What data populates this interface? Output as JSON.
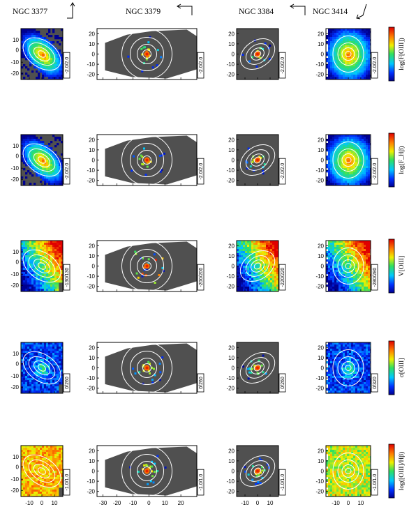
{
  "figure": {
    "galaxies": [
      {
        "name": "NGC 3377",
        "arrow": "north-east"
      },
      {
        "name": "NGC 3379",
        "arrow": "north-west"
      },
      {
        "name": "NGC 3384",
        "arrow": "north-west"
      },
      {
        "name": "NGC 3414",
        "arrow": "south-west"
      }
    ],
    "rows": [
      {
        "quantity": "log(F[OIII])",
        "ranges": [
          "-2.0/2.0",
          "-2.0/2.0",
          "-2.0/2.0",
          "-2.0/2.0"
        ],
        "colormap": "rainbow"
      },
      {
        "quantity": "log(F_Hβ)",
        "ranges": [
          "-2.0/2.0",
          "-2.0/2.0",
          "-2.0/2.0",
          "-2.0/2.0"
        ],
        "colormap": "rainbow"
      },
      {
        "quantity": "V[OIII]",
        "ranges": [
          "-130/130",
          "-200/200",
          "-220/220",
          "-280/280"
        ],
        "colormap": "rainbow"
      },
      {
        "quantity": "σ[OIII]",
        "ranges": [
          "0/260",
          "0/260",
          "0/260",
          "0/320"
        ],
        "colormap": "rainbow"
      },
      {
        "quantity": "log([OIII]/Hβ)",
        "ranges": [
          "-1.0/1.0",
          "-1.0/1.0",
          "-1.0/1.0",
          "-1.0/1.0"
        ],
        "colormap": "rainbow"
      }
    ],
    "axes": {
      "ngc3377": {
        "yticks": [
          "10",
          "0",
          "-10",
          "-20"
        ],
        "xticks": [
          "-10",
          "0",
          "10"
        ]
      },
      "ngc3379": {
        "yticks": [
          "20",
          "10",
          "0",
          "-10",
          "-20"
        ],
        "xticks": [
          "-30",
          "-20",
          "-10",
          "0",
          "10",
          "20"
        ]
      },
      "ngc3384": {
        "yticks": [
          "20",
          "10",
          "0",
          "-10",
          "-20"
        ],
        "xticks": [
          "-10",
          "0",
          "10"
        ]
      },
      "ngc3414": {
        "yticks": [
          "20",
          "10",
          "0",
          "-10",
          "-20"
        ],
        "xticks": [
          "-10",
          "0",
          "10"
        ]
      }
    },
    "colors": {
      "no_data": "#505050",
      "contour": "#ffffff",
      "frame": "#000000"
    }
  }
}
